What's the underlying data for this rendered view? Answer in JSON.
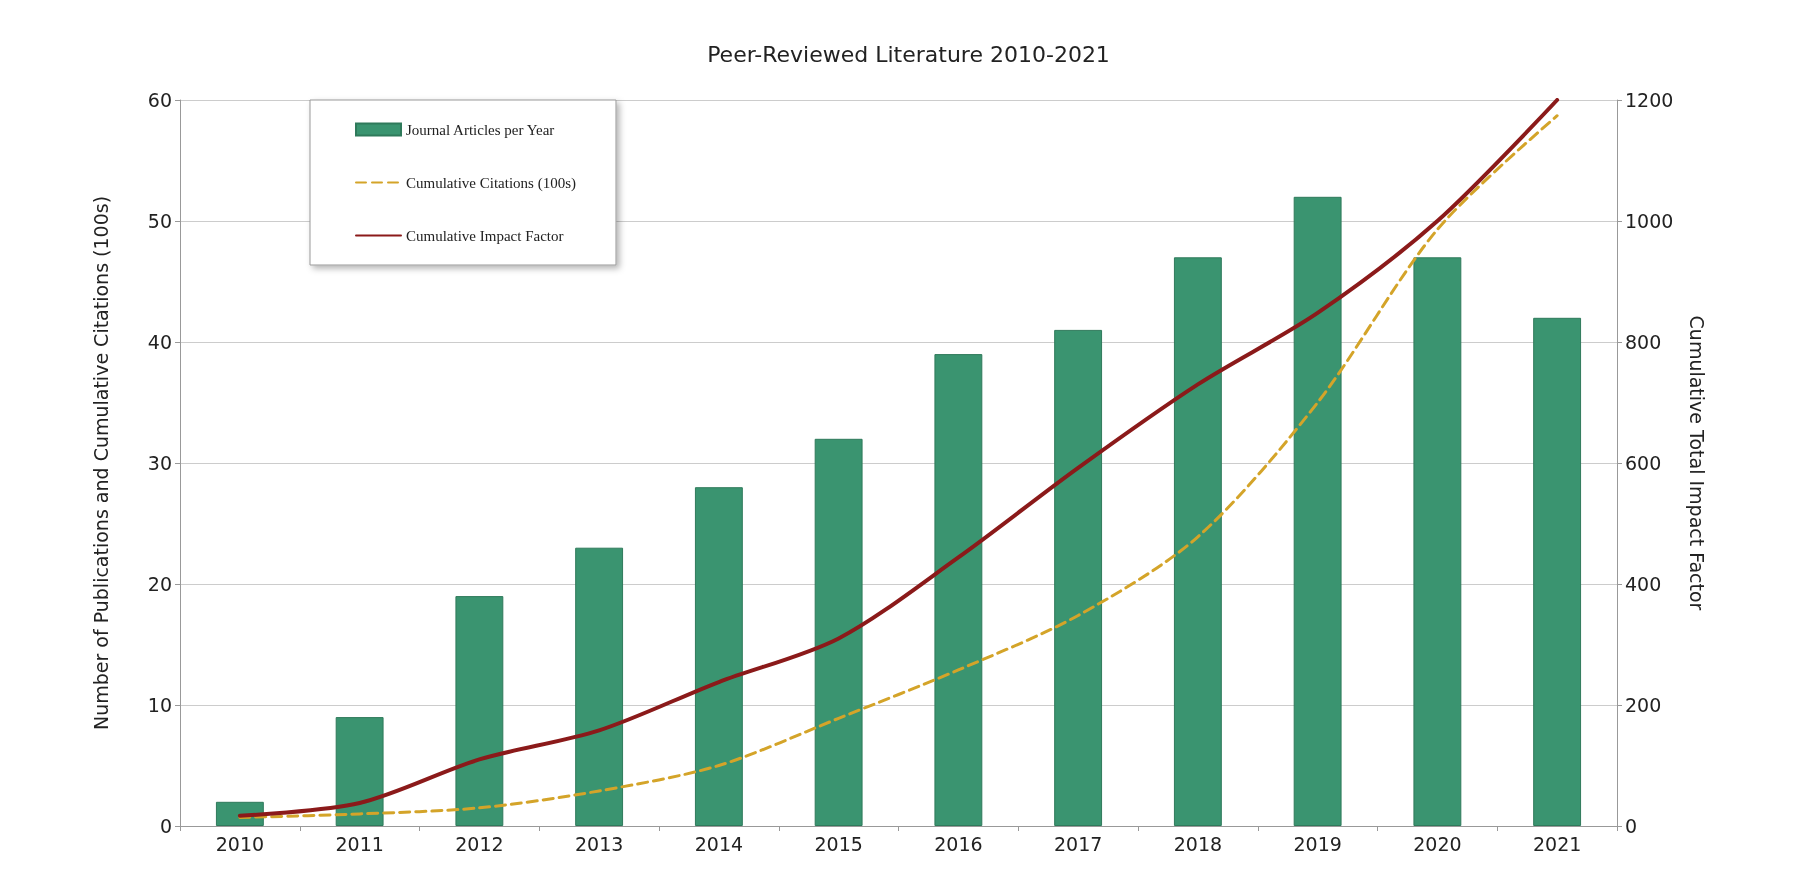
{
  "chart_data": {
    "type": "bar",
    "title": "Peer-Reviewed Literature 2010-2021",
    "ylabel": "Number of Publications and Cumulative Citations (100s)",
    "y2label": "Cumulative Total Impact Factor",
    "categories": [
      "2010",
      "2011",
      "2012",
      "2013",
      "2014",
      "2015",
      "2016",
      "2017",
      "2018",
      "2019",
      "2020",
      "2021"
    ],
    "series": [
      {
        "name": "Journal Articles per Year",
        "color": "#3a9470",
        "values": [
          2,
          9,
          19,
          23,
          28,
          32,
          39,
          41,
          47,
          52,
          47,
          42
        ]
      },
      {
        "name": "Cumulative Citations (100s)",
        "type": "line",
        "color": "#d4a429",
        "line_style": "dashed",
        "values": [
          0.7,
          1,
          1.5,
          2.9,
          5,
          8.9,
          12.9,
          17.4,
          23.9,
          35,
          49.3,
          58.7
        ]
      },
      {
        "name": "Cumulative Impact Factor",
        "type": "line",
        "color": "#8b1a1a",
        "line_style": "solid",
        "axis": "y2",
        "values": [
          17,
          38,
          110,
          158,
          238,
          310,
          444,
          592,
          730,
          848,
          1000,
          1200
        ]
      }
    ],
    "ylim": [
      0,
      60
    ],
    "yticks": [
      0,
      10,
      20,
      30,
      40,
      50,
      60
    ],
    "y2lim": [
      0,
      1200
    ],
    "y2ticks": [
      0,
      200,
      400,
      600,
      800,
      1000,
      1200
    ],
    "grid": "y",
    "legend": "top left",
    "marker": "none"
  }
}
